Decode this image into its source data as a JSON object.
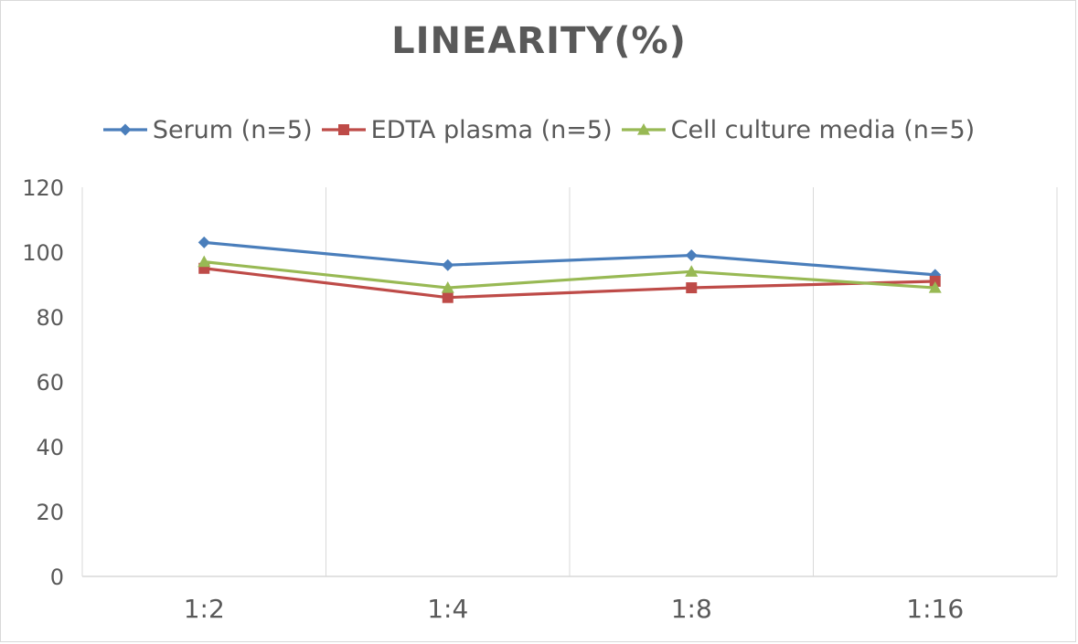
{
  "chart_data": {
    "type": "line",
    "title": "LINEARITY(%)",
    "xlabel": "",
    "ylabel": "",
    "categories": [
      "1:2",
      "1:4",
      "1:8",
      "1:16"
    ],
    "ylim": [
      0,
      120
    ],
    "yticks": [
      0,
      20,
      40,
      60,
      80,
      100,
      120
    ],
    "grid": "vertical",
    "legend": "top",
    "series": [
      {
        "name": "Serum (n=5)",
        "values": [
          103,
          96,
          99,
          93
        ],
        "color": "#4a7ebb",
        "marker": "diamond"
      },
      {
        "name": "EDTA plasma (n=5)",
        "values": [
          95,
          86,
          89,
          91
        ],
        "color": "#be4b48",
        "marker": "square"
      },
      {
        "name": "Cell culture media (n=5)",
        "values": [
          97,
          89,
          94,
          89
        ],
        "color": "#98b954",
        "marker": "triangle"
      }
    ]
  }
}
